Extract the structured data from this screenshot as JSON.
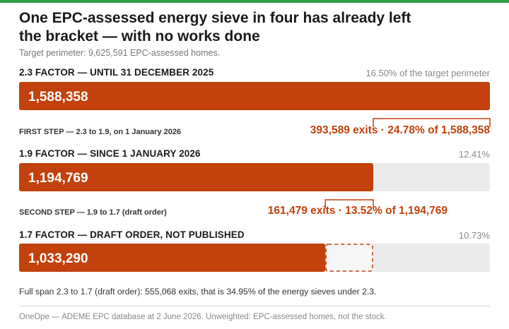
{
  "header": {
    "title": "One EPC-assessed energy sieve in four has already left the bracket — with no works done",
    "subtitle": "Target perimeter: 9,625,591 EPC-assessed homes."
  },
  "rows": [
    {
      "label": "2.3 FACTOR — UNTIL 31 DECEMBER 2025",
      "pct_label": "16.50% of the target perimeter"
    },
    {
      "label": "1.9 FACTOR — SINCE 1 JANUARY 2026",
      "pct_label": "12.41%"
    },
    {
      "label": "1.7 FACTOR — DRAFT ORDER, NOT PUBLISHED",
      "pct_label": "10.73%"
    }
  ],
  "steps": [
    {
      "label": "FIRST STEP — 2.3 to 1.9, on 1 January 2026",
      "value_label": "393,589 exits · 24.78% of 1,588,358"
    },
    {
      "label": "SECOND STEP — 1.9 to 1.7 (draft order)",
      "value_label": "161,479 exits · 13.52% of 1,194,769"
    }
  ],
  "footnote": "Full span 2.3 to 1.7 (draft order): 555,068 exits, that is 34.95% of the energy sieves under 2.3.",
  "source": "OneDpe — ADEME EPC database at 2 June 2026. Unweighted: EPC-assessed homes, not the stock.",
  "colors": {
    "bar": "#c2410c",
    "track": "#ebebeb",
    "accent_top": "#2f9e44"
  },
  "chart_data": {
    "type": "bar",
    "orientation": "horizontal",
    "title": "One EPC-assessed energy sieve in four has already left the bracket — with no works done",
    "categories": [
      "2.3 FACTOR — UNTIL 31 DECEMBER 2025",
      "1.9 FACTOR — SINCE 1 JANUARY 2026",
      "1.7 FACTOR — DRAFT ORDER, NOT PUBLISHED"
    ],
    "values": [
      1588358,
      1194769,
      1033290
    ],
    "value_labels": [
      "1,588,358",
      "1,194,769",
      "1,033,290"
    ],
    "xlim": [
      0,
      1588358
    ],
    "exits": [
      393589,
      161479
    ],
    "grid": false,
    "legend": "none"
  }
}
